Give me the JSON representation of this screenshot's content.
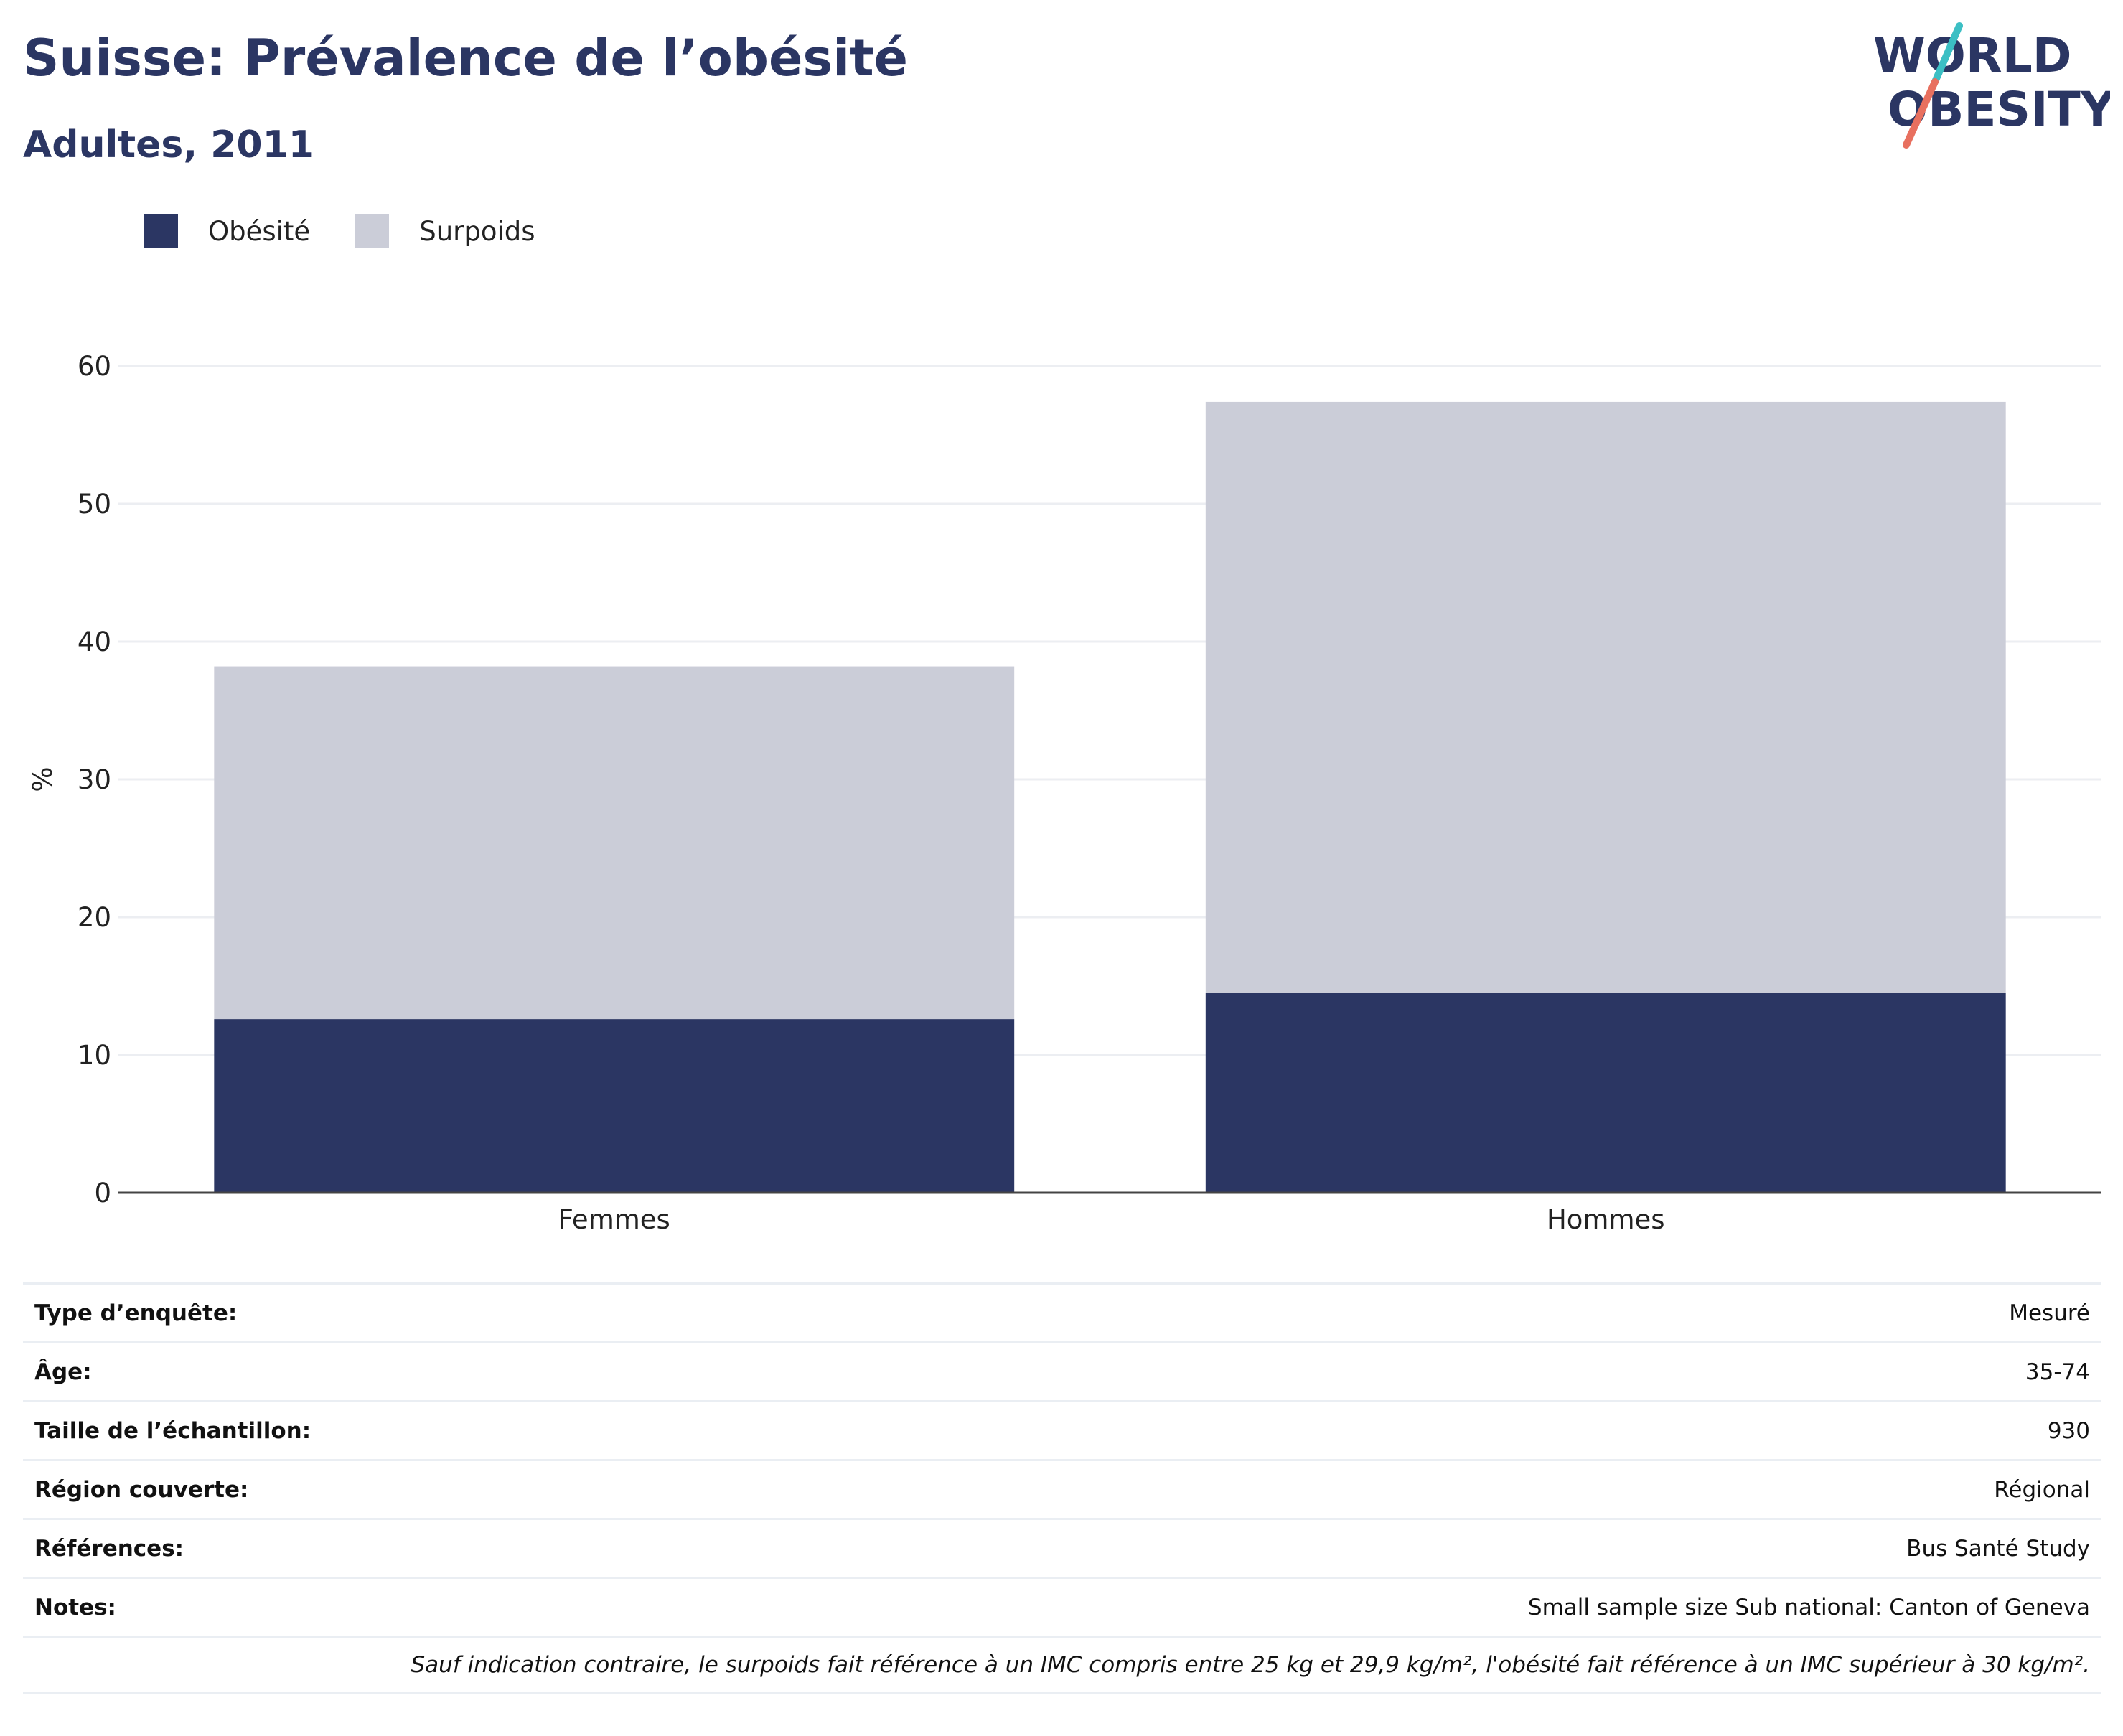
{
  "header": {
    "title": "Suisse: Prévalence de l’obésité",
    "subtitle": "Adultes, 2011"
  },
  "logo": {
    "line1": "WORLD",
    "line2": "OBESITY"
  },
  "colors": {
    "obesite": "#2b3663",
    "surpoids": "#cbcdd8",
    "accent_teal": "#3cbfc4",
    "accent_coral": "#e8705f"
  },
  "chart_data": {
    "type": "bar",
    "stacked": true,
    "categories": [
      "Femmes",
      "Hommes"
    ],
    "series": [
      {
        "name": "Obésité",
        "values": [
          12.6,
          14.5
        ]
      },
      {
        "name": "Surpoids",
        "values": [
          25.6,
          42.9
        ]
      }
    ],
    "ylabel": "%",
    "ylim": [
      0,
      60
    ],
    "yticks": [
      0,
      10,
      20,
      30,
      40,
      50,
      60
    ],
    "grid": true,
    "legend_position": "top-left"
  },
  "details": [
    {
      "label": "Type d’enquête:",
      "value": "Mesuré"
    },
    {
      "label": "Âge:",
      "value": "35-74"
    },
    {
      "label": "Taille de l’échantillon:",
      "value": "930"
    },
    {
      "label": "Région couverte:",
      "value": "Régional"
    },
    {
      "label": "Références:",
      "value": "Bus Santé Study"
    },
    {
      "label": "Notes:",
      "value": "Small sample size Sub national: Canton of Geneva"
    }
  ],
  "footnote": "Sauf indication contraire, le surpoids fait référence à un IMC compris entre 25 kg et 29,9 kg/m², l'obésité fait référence à un IMC supérieur à 30 kg/m²."
}
